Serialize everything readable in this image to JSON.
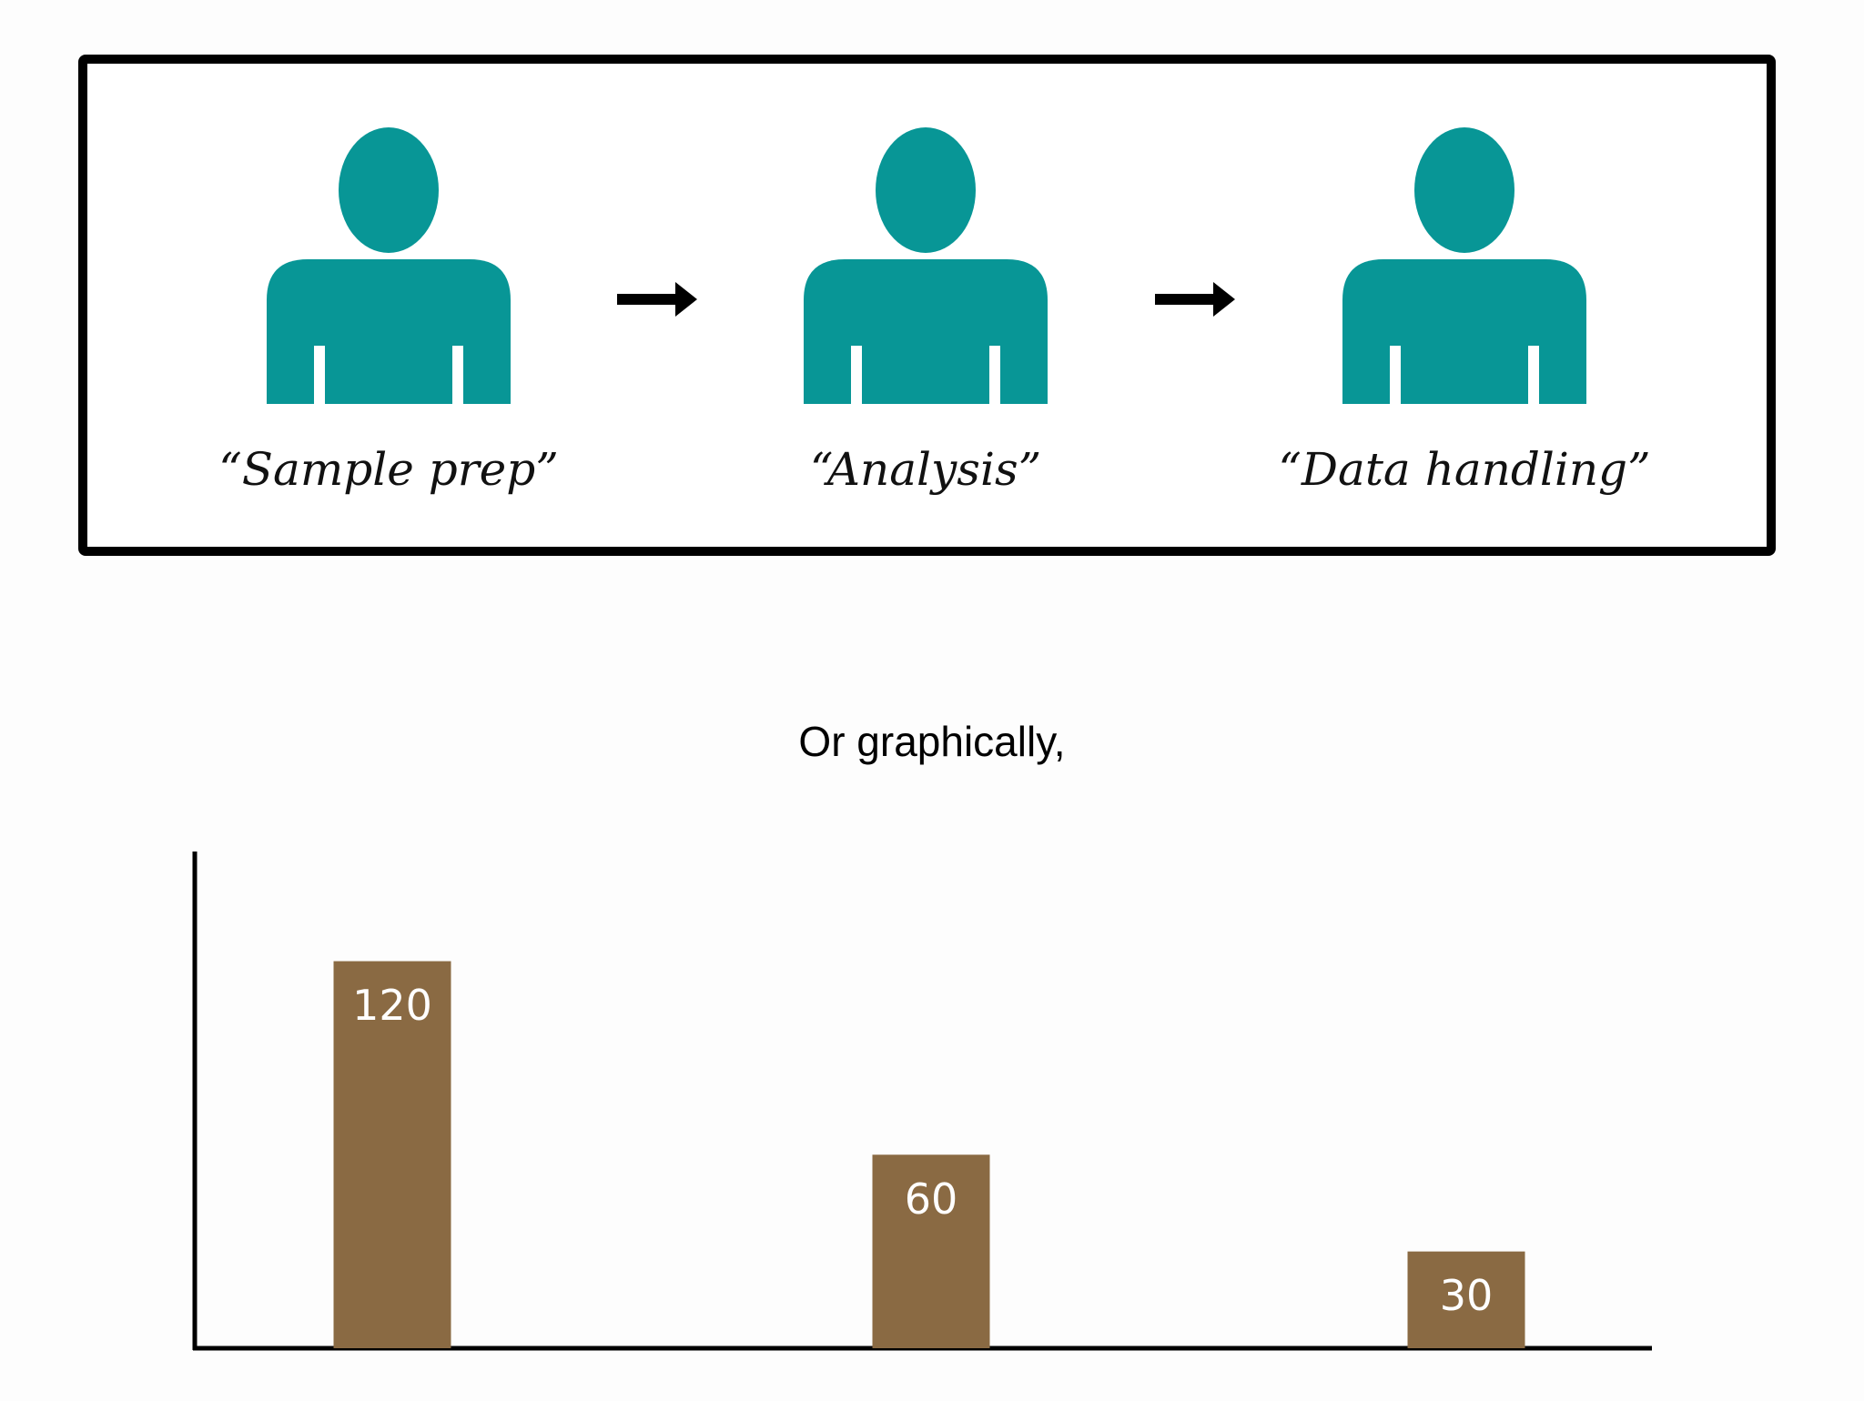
{
  "workflow": {
    "steps": [
      "“Sample prep”",
      "“Analysis”",
      "“Data handling”"
    ]
  },
  "chart_data": {
    "type": "bar",
    "title": "Or graphically,",
    "categories": [
      null,
      null,
      null
    ],
    "values": [
      120,
      60,
      30
    ],
    "color": "#8a6a43",
    "ylim": [
      0,
      154
    ]
  }
}
